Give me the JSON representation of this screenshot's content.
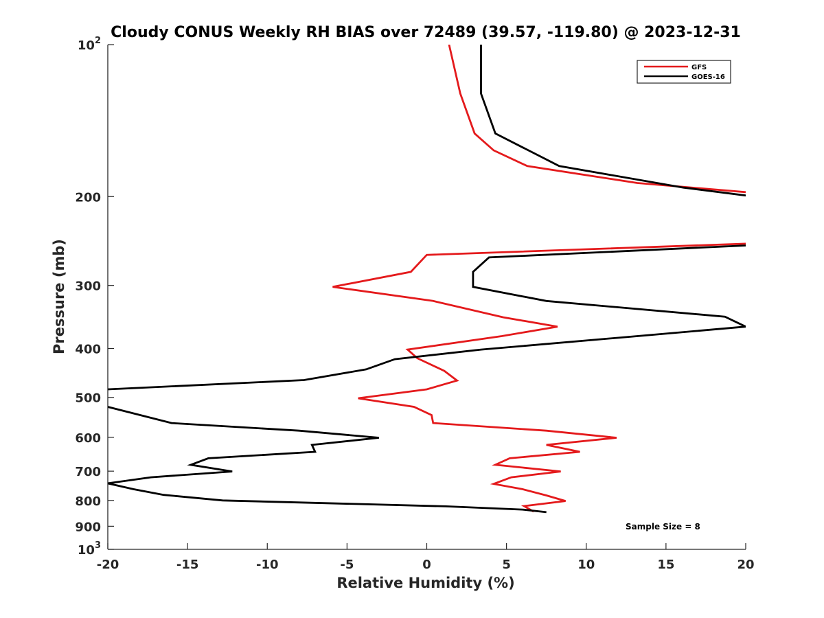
{
  "chart_data": {
    "type": "line",
    "title": "Cloudy CONUS Weekly RH BIAS over 72489 (39.57, -119.80) @ 2023-12-31",
    "xlabel": "Relative Humidity (%)",
    "ylabel": "Pressure (mb)",
    "xlim": [
      -20,
      20
    ],
    "ylim": [
      100,
      1000
    ],
    "yscale": "log",
    "y_reversed": true,
    "grid": false,
    "legend_position": "top-right",
    "x_ticks": [
      "-20",
      "-15",
      "-10",
      "-5",
      "0",
      "5",
      "10",
      "15",
      "20"
    ],
    "y_ticks": [
      {
        "value": 100,
        "label": "10",
        "sup": "2"
      },
      {
        "value": 200,
        "label": "200",
        "sup": ""
      },
      {
        "value": 300,
        "label": "300",
        "sup": ""
      },
      {
        "value": 400,
        "label": "400",
        "sup": ""
      },
      {
        "value": 500,
        "label": "500",
        "sup": ""
      },
      {
        "value": 600,
        "label": "600",
        "sup": ""
      },
      {
        "value": 700,
        "label": "700",
        "sup": ""
      },
      {
        "value": 800,
        "label": "800",
        "sup": ""
      },
      {
        "value": 900,
        "label": "900",
        "sup": ""
      },
      {
        "value": 1000,
        "label": "10",
        "sup": "3"
      }
    ],
    "annotation": "Sample Size = 8",
    "series": [
      {
        "name": "GFS",
        "color": "#e41a1c",
        "points": [
          [
            1.4,
            100
          ],
          [
            2.1,
            125
          ],
          [
            3.0,
            150
          ],
          [
            4.2,
            162
          ],
          [
            6.3,
            174
          ],
          [
            13.2,
            188
          ],
          [
            20,
            196
          ],
          [
            null,
            null
          ],
          [
            20,
            248
          ],
          [
            0.0,
            261
          ],
          [
            -1.0,
            282
          ],
          [
            -5.9,
            302
          ],
          [
            0.4,
            322
          ],
          [
            4.8,
            347
          ],
          [
            8.2,
            362
          ],
          [
            4.7,
            378
          ],
          [
            -1.2,
            402
          ],
          [
            -0.6,
            418
          ],
          [
            1.1,
            443
          ],
          [
            1.9,
            463
          ],
          [
            0.0,
            482
          ],
          [
            -4.3,
            502
          ],
          [
            -0.8,
            522
          ],
          [
            0.3,
            542
          ],
          [
            0.4,
            562
          ],
          [
            7.5,
            582
          ],
          [
            11.9,
            601
          ],
          [
            7.5,
            621
          ],
          [
            9.6,
            641
          ],
          [
            5.2,
            660
          ],
          [
            4.3,
            680
          ],
          [
            8.4,
            701
          ],
          [
            5.3,
            720
          ],
          [
            4.2,
            742
          ],
          [
            6.0,
            760
          ],
          [
            7.5,
            782
          ],
          [
            8.7,
            802
          ],
          [
            6.1,
            821
          ],
          [
            6.7,
            842
          ]
        ]
      },
      {
        "name": "GOES-16",
        "color": "#000000",
        "points": [
          [
            3.4,
            100
          ],
          [
            3.4,
            125
          ],
          [
            4.3,
            150
          ],
          [
            8.3,
            174
          ],
          [
            16.1,
            192
          ],
          [
            20,
            199
          ],
          [
            null,
            null
          ],
          [
            20,
            250
          ],
          [
            3.9,
            264
          ],
          [
            2.9,
            282
          ],
          [
            2.9,
            302
          ],
          [
            7.5,
            322
          ],
          [
            18.7,
            346
          ],
          [
            20,
            362
          ],
          [
            13.2,
            378
          ],
          [
            3.4,
            402
          ],
          [
            -2.0,
            420
          ],
          [
            -3.8,
            440
          ],
          [
            -7.7,
            462
          ],
          [
            -20,
            482
          ],
          [
            null,
            null
          ],
          [
            -20,
            522
          ],
          [
            -16.0,
            562
          ],
          [
            -8.0,
            582
          ],
          [
            -3.0,
            601
          ],
          [
            -7.2,
            621
          ],
          [
            -7.0,
            641
          ],
          [
            -13.7,
            660
          ],
          [
            -14.8,
            680
          ],
          [
            -12.2,
            701
          ],
          [
            -17.3,
            720
          ],
          [
            -20,
            740
          ],
          [
            -18.4,
            760
          ],
          [
            -16.5,
            780
          ],
          [
            -12.8,
            800
          ],
          [
            1.2,
            822
          ],
          [
            6.0,
            834
          ],
          [
            7.5,
            844
          ]
        ]
      }
    ]
  }
}
